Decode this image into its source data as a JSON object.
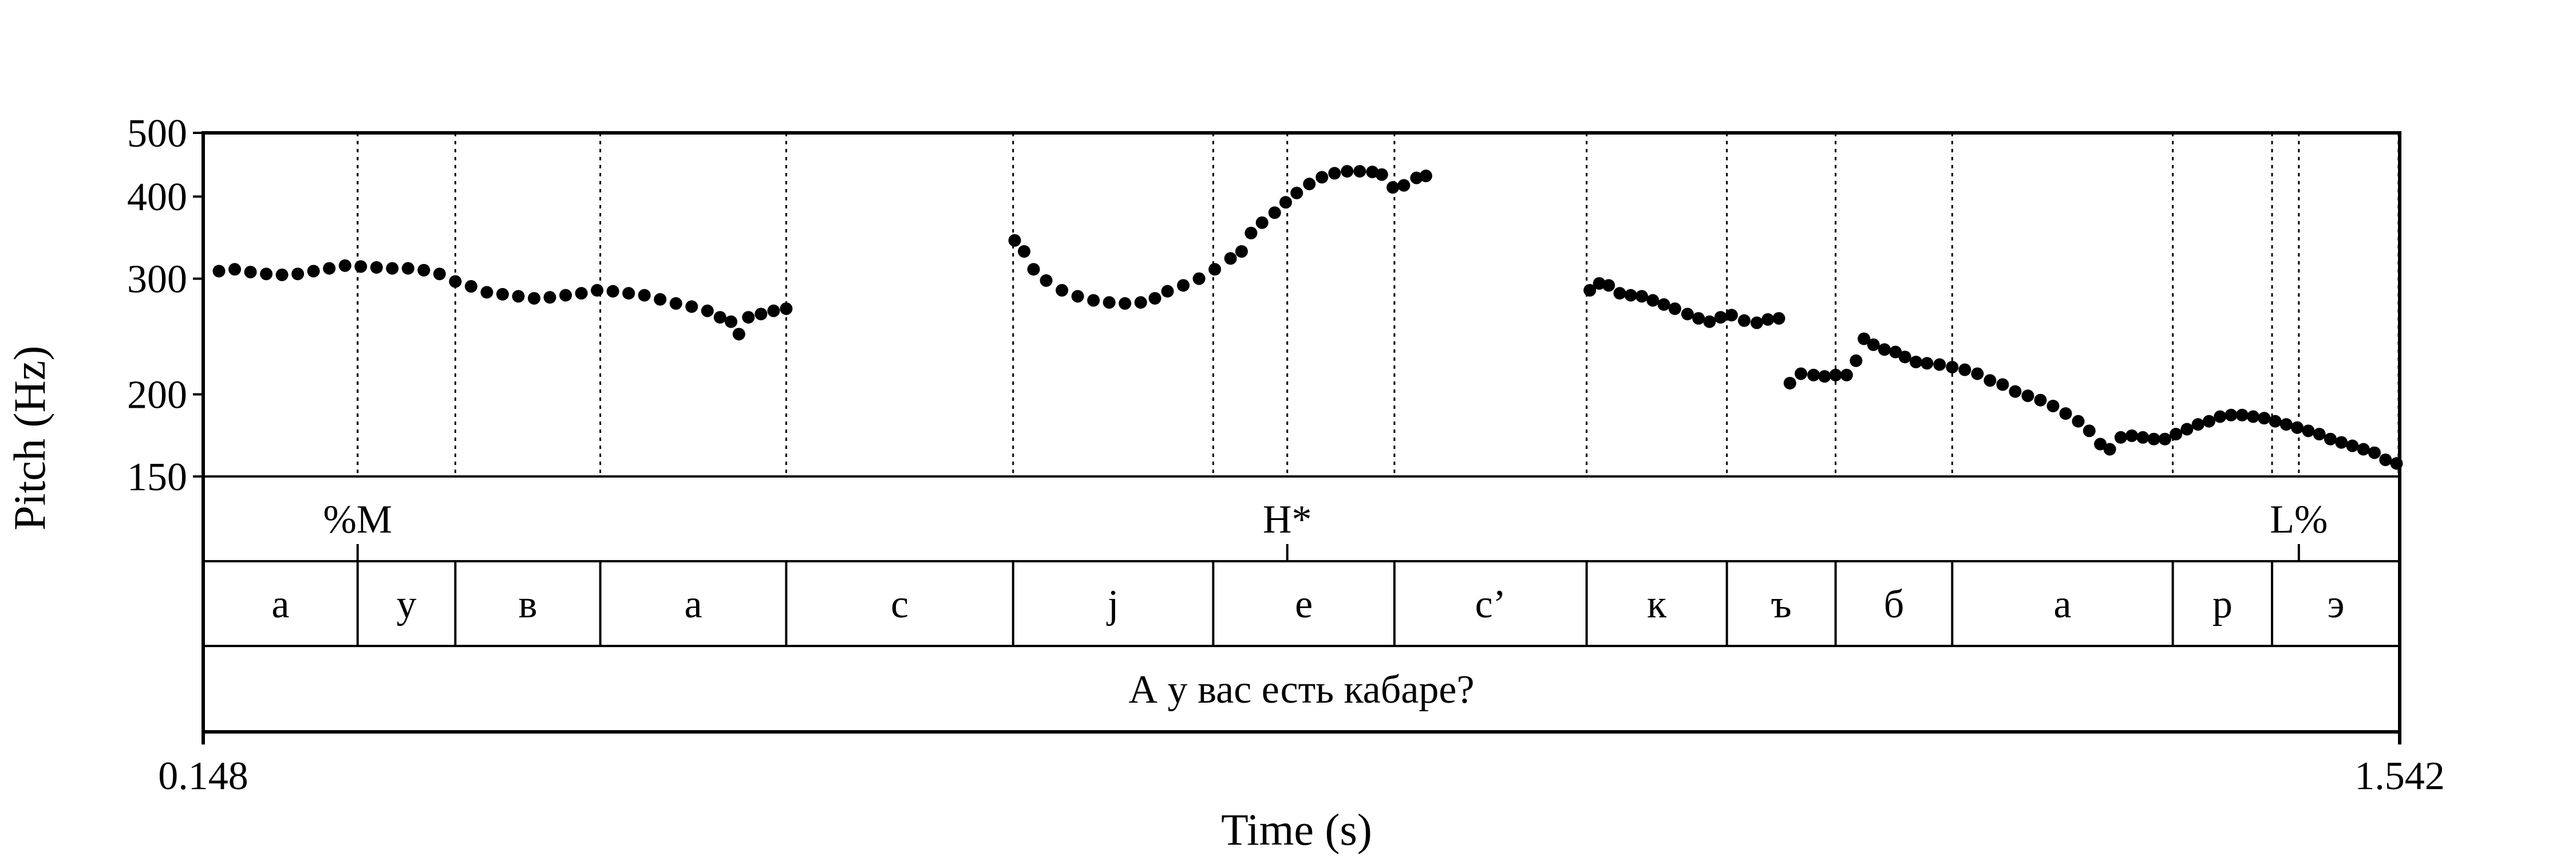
{
  "chart_data": {
    "type": "scatter",
    "title": "",
    "ylabel": "Pitch (Hz)",
    "xlabel": "Time (s)",
    "xlim": [
      0.148,
      1.542
    ],
    "ylim": [
      150,
      500
    ],
    "yscale": "log",
    "yticks": [
      150,
      200,
      300,
      400,
      500
    ],
    "xtick_labels": [
      "0.148",
      "1.542"
    ],
    "grid": false,
    "tones": [
      {
        "label": "%M",
        "t": 0.246
      },
      {
        "label": "H*",
        "t": 0.836
      },
      {
        "label": "L%",
        "t": 1.478
      }
    ],
    "segments": [
      {
        "label": "а",
        "start": 0.148,
        "end": 0.246
      },
      {
        "label": "у",
        "start": 0.246,
        "end": 0.308
      },
      {
        "label": "в",
        "start": 0.308,
        "end": 0.4
      },
      {
        "label": "а",
        "start": 0.4,
        "end": 0.518
      },
      {
        "label": "с",
        "start": 0.518,
        "end": 0.662
      },
      {
        "label": "j",
        "start": 0.662,
        "end": 0.789
      },
      {
        "label": "е",
        "start": 0.789,
        "end": 0.904
      },
      {
        "label": "с’",
        "start": 0.904,
        "end": 1.026
      },
      {
        "label": "к",
        "start": 1.026,
        "end": 1.115
      },
      {
        "label": "ъ",
        "start": 1.115,
        "end": 1.184
      },
      {
        "label": "б",
        "start": 1.184,
        "end": 1.258
      },
      {
        "label": "а",
        "start": 1.258,
        "end": 1.398
      },
      {
        "label": "р",
        "start": 1.398,
        "end": 1.461
      },
      {
        "label": "э",
        "start": 1.461,
        "end": 1.542
      }
    ],
    "sentence": "А у вас есть кабаре?",
    "series": [
      {
        "points": [
          [
            0.158,
            308
          ],
          [
            0.168,
            310
          ],
          [
            0.178,
            307
          ],
          [
            0.188,
            305
          ],
          [
            0.198,
            304
          ],
          [
            0.208,
            305
          ],
          [
            0.218,
            308
          ],
          [
            0.228,
            311
          ],
          [
            0.238,
            314
          ],
          [
            0.248,
            313
          ],
          [
            0.258,
            312
          ],
          [
            0.268,
            311
          ],
          [
            0.278,
            311
          ],
          [
            0.288,
            309
          ],
          [
            0.298,
            305
          ],
          [
            0.308,
            297
          ],
          [
            0.318,
            292
          ],
          [
            0.328,
            286
          ],
          [
            0.338,
            284
          ],
          [
            0.348,
            282
          ],
          [
            0.358,
            280
          ],
          [
            0.368,
            281
          ],
          [
            0.378,
            283
          ],
          [
            0.388,
            285
          ],
          [
            0.398,
            288
          ],
          [
            0.408,
            287
          ],
          [
            0.418,
            285
          ],
          [
            0.428,
            283
          ],
          [
            0.438,
            279
          ],
          [
            0.448,
            275
          ],
          [
            0.458,
            272
          ],
          [
            0.468,
            268
          ],
          [
            0.476,
            262
          ],
          [
            0.483,
            258
          ],
          [
            0.488,
            247
          ],
          [
            0.494,
            262
          ],
          [
            0.502,
            265
          ],
          [
            0.51,
            268
          ],
          [
            0.518,
            270
          ],
          [
            0.663,
            343
          ],
          [
            0.669,
            330
          ],
          [
            0.675,
            310
          ],
          [
            0.683,
            298
          ],
          [
            0.693,
            288
          ],
          [
            0.703,
            282
          ],
          [
            0.713,
            278
          ],
          [
            0.723,
            276
          ],
          [
            0.733,
            275
          ],
          [
            0.743,
            276
          ],
          [
            0.752,
            280
          ],
          [
            0.76,
            287
          ],
          [
            0.77,
            293
          ],
          [
            0.78,
            300
          ],
          [
            0.79,
            310
          ],
          [
            0.8,
            322
          ],
          [
            0.807,
            330
          ],
          [
            0.813,
            352
          ],
          [
            0.82,
            365
          ],
          [
            0.828,
            378
          ],
          [
            0.835,
            392
          ],
          [
            0.842,
            405
          ],
          [
            0.85,
            418
          ],
          [
            0.858,
            428
          ],
          [
            0.866,
            434
          ],
          [
            0.874,
            437
          ],
          [
            0.882,
            437
          ],
          [
            0.89,
            436
          ],
          [
            0.896,
            432
          ],
          [
            0.903,
            413
          ],
          [
            0.91,
            416
          ],
          [
            0.918,
            427
          ],
          [
            0.924,
            430
          ],
          [
            1.028,
            288
          ],
          [
            1.034,
            295
          ],
          [
            1.04,
            293
          ],
          [
            1.047,
            285
          ],
          [
            1.054,
            283
          ],
          [
            1.061,
            282
          ],
          [
            1.068,
            278
          ],
          [
            1.075,
            274
          ],
          [
            1.082,
            270
          ],
          [
            1.09,
            265
          ],
          [
            1.097,
            261
          ],
          [
            1.104,
            258
          ],
          [
            1.111,
            262
          ],
          [
            1.118,
            264
          ],
          [
            1.126,
            259
          ],
          [
            1.134,
            257
          ],
          [
            1.141,
            260
          ],
          [
            1.148,
            261
          ],
          [
            1.155,
            208
          ],
          [
            1.162,
            215
          ],
          [
            1.17,
            214
          ],
          [
            1.177,
            213
          ],
          [
            1.184,
            214
          ],
          [
            1.191,
            214
          ],
          [
            1.197,
            225
          ],
          [
            1.202,
            243
          ],
          [
            1.208,
            238
          ],
          [
            1.215,
            234
          ],
          [
            1.222,
            232
          ],
          [
            1.228,
            228
          ],
          [
            1.235,
            224
          ],
          [
            1.242,
            223
          ],
          [
            1.25,
            222
          ],
          [
            1.258,
            220
          ],
          [
            1.266,
            218
          ],
          [
            1.274,
            215
          ],
          [
            1.282,
            210
          ],
          [
            1.29,
            207
          ],
          [
            1.298,
            202
          ],
          [
            1.306,
            199
          ],
          [
            1.314,
            196
          ],
          [
            1.322,
            192
          ],
          [
            1.33,
            187
          ],
          [
            1.338,
            182
          ],
          [
            1.345,
            176
          ],
          [
            1.352,
            168
          ],
          [
            1.358,
            165
          ],
          [
            1.365,
            172
          ],
          [
            1.372,
            173
          ],
          [
            1.379,
            172
          ],
          [
            1.386,
            171
          ],
          [
            1.393,
            171
          ],
          [
            1.4,
            174
          ],
          [
            1.407,
            177
          ],
          [
            1.414,
            180
          ],
          [
            1.421,
            182
          ],
          [
            1.428,
            185
          ],
          [
            1.435,
            186
          ],
          [
            1.442,
            186
          ],
          [
            1.449,
            185
          ],
          [
            1.456,
            184
          ],
          [
            1.463,
            182
          ],
          [
            1.47,
            180
          ],
          [
            1.477,
            178
          ],
          [
            1.484,
            176
          ],
          [
            1.491,
            174
          ],
          [
            1.498,
            171
          ],
          [
            1.505,
            169
          ],
          [
            1.512,
            167
          ],
          [
            1.519,
            165
          ],
          [
            1.526,
            163
          ],
          [
            1.533,
            159
          ],
          [
            1.54,
            157
          ]
        ]
      }
    ]
  }
}
